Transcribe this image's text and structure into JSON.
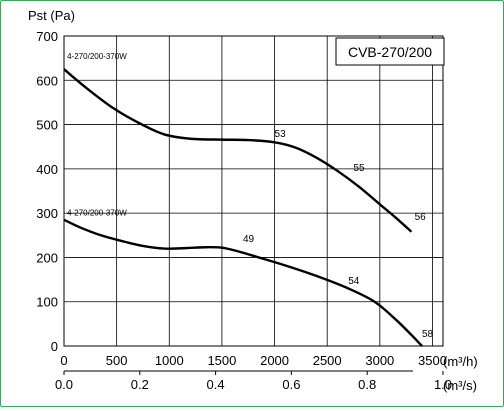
{
  "chart_data": {
    "type": "line",
    "title_box": "CVB-270/200",
    "ylabel": "Pst (Pa)",
    "x_unit_primary": "(m³/h)",
    "x_unit_secondary": "(m³/s)",
    "xlim": [
      0,
      3600
    ],
    "ylim": [
      0,
      700
    ],
    "x_ticks": [
      0,
      500,
      1000,
      1500,
      2000,
      2500,
      3000,
      3500
    ],
    "y_ticks": [
      0,
      100,
      200,
      300,
      400,
      500,
      600,
      700
    ],
    "x2_ticks": [
      {
        "value": 0,
        "label": "0.0"
      },
      {
        "value": 720,
        "label": "0.2"
      },
      {
        "value": 1440,
        "label": "0.4"
      },
      {
        "value": 2160,
        "label": "0.6"
      },
      {
        "value": 2880,
        "label": "0.8"
      },
      {
        "value": 3600,
        "label": "1.0"
      }
    ],
    "grid": true,
    "series": [
      {
        "name": "4-270/200-370W",
        "label_pos": {
          "x": 30,
          "y": 648
        },
        "points": [
          [
            0,
            625
          ],
          [
            200,
            585
          ],
          [
            450,
            540
          ],
          [
            700,
            505
          ],
          [
            950,
            478
          ],
          [
            1200,
            468
          ],
          [
            1500,
            466
          ],
          [
            1750,
            465
          ],
          [
            2000,
            460
          ],
          [
            2200,
            448
          ],
          [
            2400,
            425
          ],
          [
            2600,
            395
          ],
          [
            2800,
            360
          ],
          [
            3000,
            320
          ],
          [
            3150,
            290
          ],
          [
            3300,
            258
          ]
        ],
        "annotations": [
          {
            "text": "53",
            "x": 2000,
            "y": 472
          },
          {
            "text": "55",
            "x": 2750,
            "y": 395
          },
          {
            "text": "56",
            "x": 3330,
            "y": 285
          }
        ]
      },
      {
        "name": "4-270/200-370W",
        "label_pos": {
          "x": 30,
          "y": 295
        },
        "points": [
          [
            0,
            285
          ],
          [
            150,
            268
          ],
          [
            350,
            250
          ],
          [
            550,
            237
          ],
          [
            750,
            226
          ],
          [
            950,
            220
          ],
          [
            1150,
            221
          ],
          [
            1350,
            223
          ],
          [
            1500,
            222
          ],
          [
            1650,
            214
          ],
          [
            1850,
            200
          ],
          [
            2100,
            182
          ],
          [
            2400,
            158
          ],
          [
            2700,
            130
          ],
          [
            2950,
            100
          ],
          [
            3150,
            60
          ],
          [
            3300,
            25
          ],
          [
            3400,
            0
          ]
        ],
        "annotations": [
          {
            "text": "49",
            "x": 1700,
            "y": 235
          },
          {
            "text": "54",
            "x": 2700,
            "y": 140
          },
          {
            "text": "58",
            "x": 3400,
            "y": 20
          }
        ]
      }
    ]
  }
}
